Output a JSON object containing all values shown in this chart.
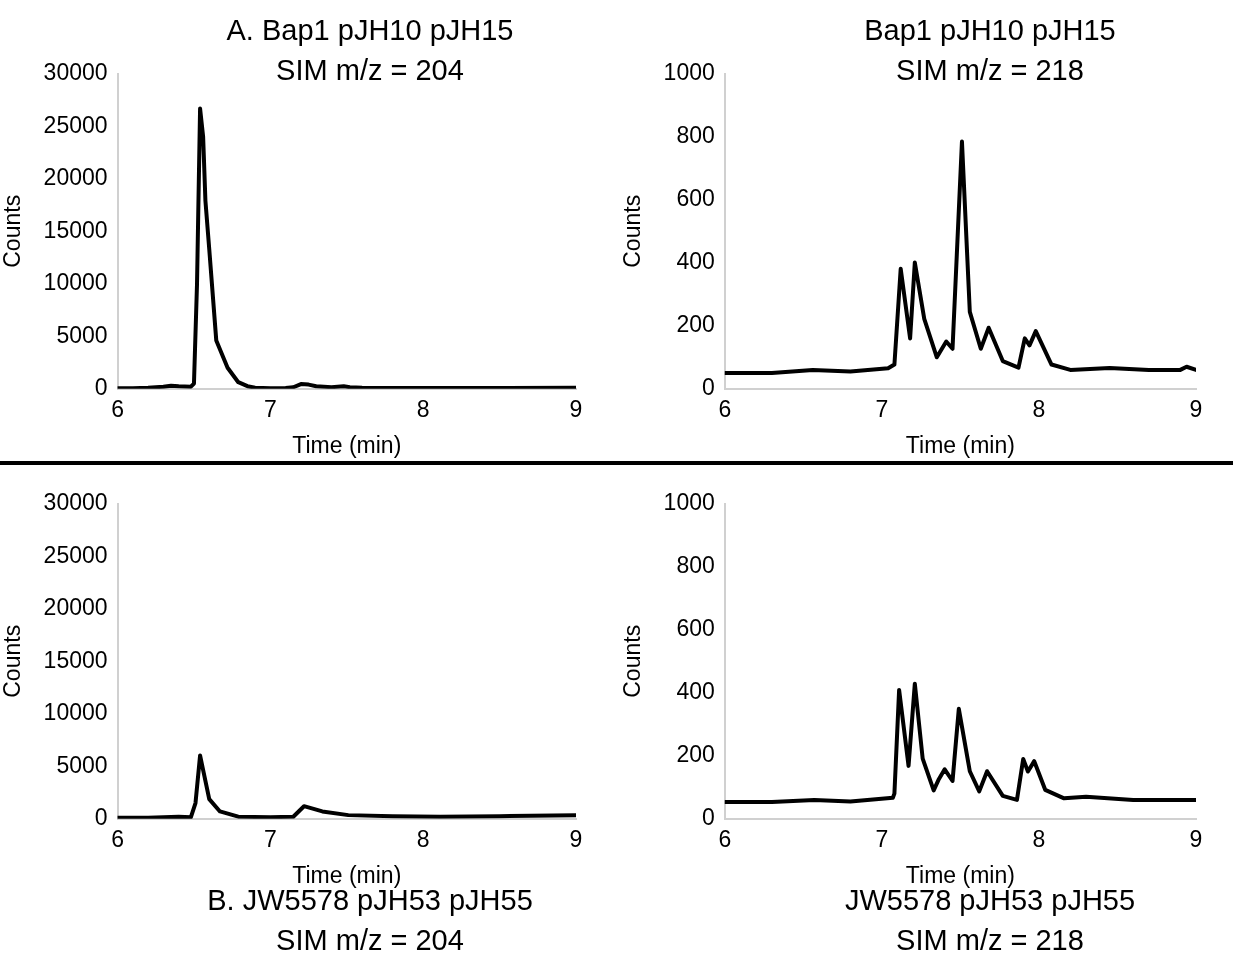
{
  "chart_data": [
    {
      "type": "line",
      "title": "A. Bap1 pJH10 pJH15",
      "subtitle": "SIM m/z = 204",
      "xlabel": "Time (min)",
      "ylabel": "Counts",
      "xlim": [
        6,
        9
      ],
      "xticks": [
        6,
        7,
        8,
        9
      ],
      "ylim": [
        0,
        30000
      ],
      "yticks": [
        0,
        5000,
        10000,
        15000,
        20000,
        25000,
        30000
      ],
      "x": [
        6.0,
        6.1,
        6.2,
        6.3,
        6.35,
        6.4,
        6.48,
        6.5,
        6.52,
        6.54,
        6.56,
        6.575,
        6.6,
        6.646,
        6.72,
        6.79,
        6.85,
        6.9,
        7.0,
        7.1,
        7.15,
        7.2,
        7.25,
        7.3,
        7.4,
        7.48,
        7.52,
        7.6,
        8.0,
        8.5,
        9.0
      ],
      "series": [
        {
          "color": "#000000",
          "values": [
            50,
            60,
            100,
            200,
            300,
            250,
            200,
            500,
            10000,
            26700,
            24000,
            17900,
            13300,
            4600,
            2000,
            630,
            250,
            100,
            50,
            80,
            150,
            450,
            400,
            250,
            150,
            250,
            150,
            100,
            80,
            80,
            100
          ]
        }
      ]
    },
    {
      "type": "line",
      "title": "Bap1 pJH10 pJH15",
      "subtitle": "SIM m/z = 218",
      "xlabel": "Time (min)",
      "ylabel": "Counts",
      "xlim": [
        6,
        9
      ],
      "xticks": [
        6,
        7,
        8,
        9
      ],
      "ylim": [
        0,
        1000
      ],
      "yticks": [
        0,
        200,
        400,
        600,
        800,
        1000
      ],
      "x": [
        6.0,
        6.3,
        6.56,
        6.8,
        7.04,
        7.08,
        7.12,
        7.18,
        7.21,
        7.27,
        7.35,
        7.41,
        7.45,
        7.51,
        7.56,
        7.63,
        7.68,
        7.77,
        7.87,
        7.91,
        7.94,
        7.98,
        8.08,
        8.2,
        8.45,
        8.7,
        8.9,
        8.94,
        9.0
      ],
      "series": [
        {
          "color": "#000000",
          "values": [
            50,
            50,
            60,
            55,
            65,
            77,
            381,
            160,
            401,
            222,
            100,
            150,
            127,
            785,
            244,
            127,
            194,
            88,
            67,
            160,
            138,
            183,
            77,
            60,
            66,
            60,
            60,
            70,
            60
          ]
        }
      ]
    },
    {
      "type": "line",
      "title": "B. JW5578 pJH53 pJH55",
      "subtitle": "SIM m/z = 204",
      "xlabel": "Time (min)",
      "ylabel": "Counts",
      "xlim": [
        6,
        9
      ],
      "xticks": [
        6,
        7,
        8,
        9
      ],
      "ylim": [
        0,
        30000
      ],
      "yticks": [
        0,
        5000,
        10000,
        15000,
        20000,
        25000,
        30000
      ],
      "x": [
        6.0,
        6.2,
        6.4,
        6.48,
        6.51,
        6.54,
        6.6,
        6.67,
        6.79,
        7.0,
        7.15,
        7.22,
        7.34,
        7.51,
        7.8,
        8.11,
        8.5,
        9.0
      ],
      "series": [
        {
          "color": "#000000",
          "values": [
            100,
            100,
            200,
            150,
            1500,
            6030,
            1870,
            700,
            200,
            150,
            200,
            1200,
            700,
            350,
            250,
            200,
            250,
            350
          ]
        }
      ]
    },
    {
      "type": "line",
      "title": "JW5578 pJH53 pJH55",
      "subtitle": "SIM m/z = 218",
      "xlabel": "Time (min)",
      "ylabel": "Counts",
      "xlim": [
        6,
        9
      ],
      "xticks": [
        6,
        7,
        8,
        9
      ],
      "ylim": [
        0,
        1000
      ],
      "yticks": [
        0,
        200,
        400,
        600,
        800,
        1000
      ],
      "x": [
        6.0,
        6.3,
        6.57,
        6.8,
        7.07,
        7.08,
        7.11,
        7.17,
        7.21,
        7.26,
        7.33,
        7.36,
        7.4,
        7.45,
        7.49,
        7.56,
        7.62,
        7.67,
        7.77,
        7.86,
        7.9,
        7.93,
        7.97,
        8.04,
        8.16,
        8.3,
        8.6,
        9.0
      ],
      "series": [
        {
          "color": "#000000",
          "values": [
            53,
            53,
            60,
            55,
            67,
            80,
            409,
            168,
            429,
            191,
            90,
            123,
            157,
            120,
            349,
            151,
            87,
            151,
            73,
            60,
            190,
            150,
            183,
            92,
            65,
            70,
            60,
            60
          ]
        }
      ]
    }
  ]
}
